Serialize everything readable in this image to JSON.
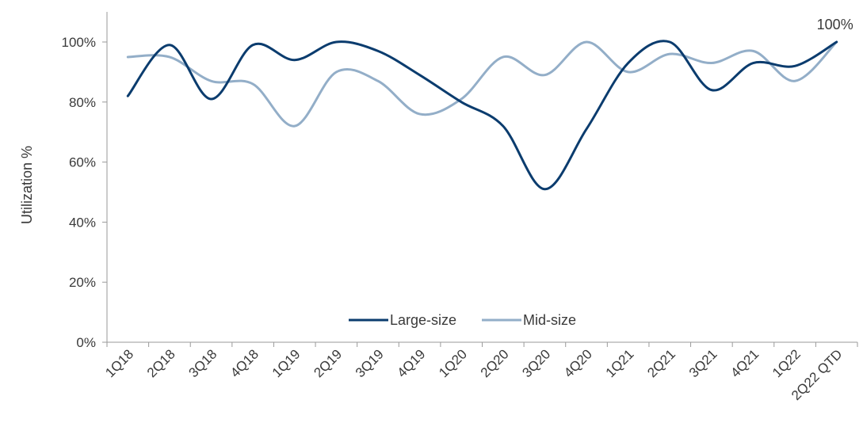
{
  "chart_data": {
    "type": "line",
    "title": "",
    "xlabel": "",
    "ylabel": "Utilization %",
    "categories": [
      "1Q18",
      "2Q18",
      "3Q18",
      "4Q18",
      "1Q19",
      "2Q19",
      "3Q19",
      "4Q19",
      "1Q20",
      "2Q20",
      "3Q20",
      "4Q20",
      "1Q21",
      "2Q21",
      "3Q21",
      "4Q21",
      "1Q22",
      "2Q22 QTD"
    ],
    "yticks": [
      "0%",
      "20%",
      "40%",
      "60%",
      "80%",
      "100%"
    ],
    "ylim": [
      0,
      1
    ],
    "grid": false,
    "legend": "bottom-center",
    "series": [
      {
        "name": "Large-size",
        "color": "#0b3c6e",
        "values": [
          0.82,
          0.99,
          0.81,
          0.99,
          0.94,
          1.0,
          0.97,
          0.89,
          0.8,
          0.72,
          0.51,
          0.71,
          0.93,
          1.0,
          0.84,
          0.93,
          0.92,
          1.0
        ]
      },
      {
        "name": "Mid-size",
        "color": "#93aec8",
        "values": [
          0.95,
          0.95,
          0.87,
          0.86,
          0.72,
          0.9,
          0.87,
          0.76,
          0.81,
          0.95,
          0.89,
          1.0,
          0.9,
          0.96,
          0.93,
          0.97,
          0.87,
          1.0
        ]
      }
    ],
    "annotations": [
      {
        "text": "100%",
        "category": "2Q22 QTD",
        "value": 1.0
      }
    ]
  }
}
